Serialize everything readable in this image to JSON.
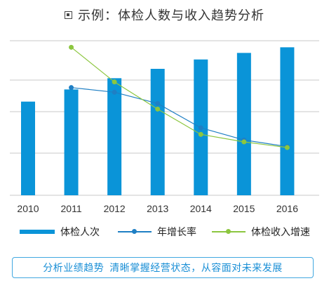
{
  "title": "示例：体检人数与收入趋势分析",
  "chart_data": {
    "type": "bar+line",
    "categories": [
      "2010",
      "2011",
      "2012",
      "2013",
      "2014",
      "2015",
      "2016"
    ],
    "series": [
      {
        "name": "体检人次",
        "type": "bar",
        "color": "#0a94d8",
        "values": [
          100,
          113,
          125,
          135,
          145,
          152,
          158
        ]
      },
      {
        "name": "年增长率",
        "type": "line",
        "color": "#1f7fc4",
        "values": [
          null,
          115,
          110,
          98,
          72,
          59,
          52
        ]
      },
      {
        "name": "体检收入增速",
        "type": "line",
        "color": "#8cc63f",
        "values": [
          null,
          158,
          121,
          92,
          65,
          57,
          51
        ]
      }
    ],
    "ylim": [
      0,
      165
    ],
    "grid": true,
    "xlabel": "",
    "ylabel": "",
    "legend": "bottom"
  },
  "legend": {
    "bar_label": "体检人次",
    "line1_label": "年增长率",
    "line2_label": "体检收入增速"
  },
  "banner": {
    "part1": "分析业绩趋势",
    "part2": "清晰掌握经营状态，从容面对未来发展"
  }
}
